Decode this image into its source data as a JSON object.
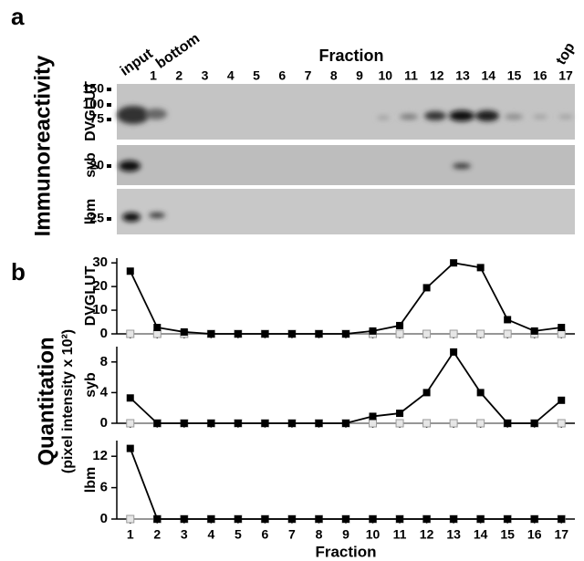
{
  "figure_a": {
    "label": "a",
    "ylabel": "Immunoreactivity",
    "fraction_label": "Fraction",
    "lanes": [
      "input",
      "bottom",
      "top"
    ],
    "lane_numbers": [
      "1",
      "2",
      "3",
      "4",
      "5",
      "6",
      "7",
      "8",
      "9",
      "10",
      "11",
      "12",
      "13",
      "14",
      "15",
      "16",
      "17"
    ],
    "blots": [
      {
        "name": "DVGLUT",
        "markers": [
          "150",
          "100",
          "75"
        ]
      },
      {
        "name": "syb",
        "markers": [
          "20"
        ]
      },
      {
        "name": "lbm",
        "markers": [
          "25"
        ]
      }
    ]
  },
  "figure_b": {
    "label": "b",
    "ylabel": "Quantitation",
    "ylabel_sub": "(pixel intensity x 10²)"
  },
  "chart_data": [
    {
      "type": "line",
      "ylabel": "DVGLUT",
      "x": [
        1,
        2,
        3,
        4,
        5,
        6,
        7,
        8,
        9,
        10,
        11,
        12,
        13,
        14,
        15,
        16,
        17
      ],
      "xlim": [
        0.5,
        17.5
      ],
      "xticks": [
        1,
        2,
        3,
        4,
        5,
        6,
        7,
        8,
        9,
        10,
        11,
        12,
        13,
        14,
        15,
        16,
        17
      ],
      "ylim": [
        0,
        32
      ],
      "yticks": [
        0,
        10,
        20,
        30
      ],
      "series": [
        {
          "color": "#9a9a9a",
          "marker": "open",
          "values": [
            0,
            0,
            0,
            0,
            0,
            0,
            0,
            0,
            0,
            0,
            0,
            0,
            0,
            0,
            0,
            0,
            0
          ]
        },
        {
          "color": "#000000",
          "marker": "filled",
          "values": [
            26.5,
            2.7,
            0.8,
            0,
            0,
            0,
            0,
            0,
            0,
            1.2,
            3.5,
            19.5,
            30,
            28,
            6,
            1.2,
            2.7
          ]
        }
      ]
    },
    {
      "type": "line",
      "ylabel": "syb",
      "x": [
        1,
        2,
        3,
        4,
        5,
        6,
        7,
        8,
        9,
        10,
        11,
        12,
        13,
        14,
        15,
        16,
        17
      ],
      "xlim": [
        0.5,
        17.5
      ],
      "xticks": [
        1,
        2,
        3,
        4,
        5,
        6,
        7,
        8,
        9,
        10,
        11,
        12,
        13,
        14,
        15,
        16,
        17
      ],
      "ylim": [
        0,
        10
      ],
      "yticks": [
        0,
        4,
        8
      ],
      "series": [
        {
          "color": "#9a9a9a",
          "marker": "open",
          "values": [
            0,
            0,
            0,
            0,
            0,
            0,
            0,
            0,
            0,
            0,
            0,
            0,
            0,
            0,
            0,
            0,
            0
          ]
        },
        {
          "color": "#000000",
          "marker": "filled",
          "values": [
            3.3,
            0,
            0,
            0,
            0,
            0,
            0,
            0,
            0,
            0.9,
            1.3,
            4,
            9.3,
            4,
            0,
            0,
            3
          ]
        }
      ]
    },
    {
      "type": "line",
      "ylabel": "lbm",
      "xlabel": "Fraction",
      "x": [
        1,
        2,
        3,
        4,
        5,
        6,
        7,
        8,
        9,
        10,
        11,
        12,
        13,
        14,
        15,
        16,
        17
      ],
      "xlim": [
        0.5,
        17.5
      ],
      "xticks": [
        1,
        2,
        3,
        4,
        5,
        6,
        7,
        8,
        9,
        10,
        11,
        12,
        13,
        14,
        15,
        16,
        17
      ],
      "ylim": [
        0,
        15
      ],
      "yticks": [
        0,
        6,
        12
      ],
      "series": [
        {
          "color": "#9a9a9a",
          "marker": "open",
          "values": [
            0,
            0,
            0,
            0,
            0,
            0,
            0,
            0,
            0,
            0,
            0,
            0,
            0,
            0,
            0,
            0,
            0
          ]
        },
        {
          "color": "#000000",
          "marker": "filled",
          "values": [
            13.5,
            0,
            0,
            0,
            0,
            0,
            0,
            0,
            0,
            0,
            0,
            0,
            0,
            0,
            0,
            0,
            0
          ]
        }
      ]
    }
  ]
}
